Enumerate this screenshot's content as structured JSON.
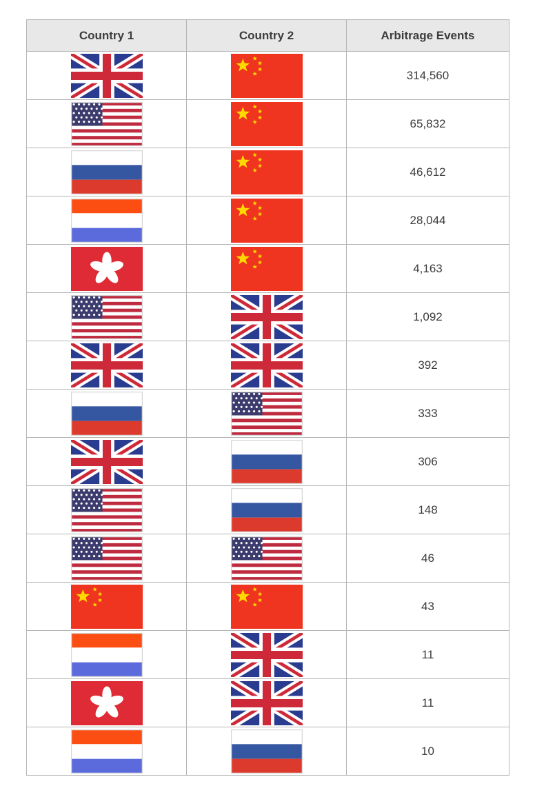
{
  "table": {
    "headers": [
      "Country 1",
      "Country 2",
      "Arbitrage Events"
    ],
    "rows": [
      {
        "country1": "united-kingdom",
        "country2": "china",
        "events": "314,560"
      },
      {
        "country1": "united-states",
        "country2": "china",
        "events": "65,832"
      },
      {
        "country1": "russia",
        "country2": "china",
        "events": "46,612"
      },
      {
        "country1": "netherlands",
        "country2": "china",
        "events": "28,044"
      },
      {
        "country1": "hong-kong",
        "country2": "china",
        "events": "4,163"
      },
      {
        "country1": "united-states",
        "country2": "united-kingdom",
        "events": "1,092"
      },
      {
        "country1": "united-kingdom",
        "country2": "united-kingdom",
        "events": "392"
      },
      {
        "country1": "russia",
        "country2": "united-states",
        "events": "333"
      },
      {
        "country1": "united-kingdom",
        "country2": "russia",
        "events": "306"
      },
      {
        "country1": "united-states",
        "country2": "russia",
        "events": "148"
      },
      {
        "country1": "united-states",
        "country2": "united-states",
        "events": "46"
      },
      {
        "country1": "china",
        "country2": "china",
        "events": "43"
      },
      {
        "country1": "netherlands",
        "country2": "united-kingdom",
        "events": "11"
      },
      {
        "country1": "hong-kong",
        "country2": "united-kingdom",
        "events": "11"
      },
      {
        "country1": "netherlands",
        "country2": "russia",
        "events": "10"
      }
    ]
  },
  "flags": {
    "united-kingdom": {
      "label": "United Kingdom",
      "colors": {
        "field": "#2A3C90",
        "white": "#FFFFFF",
        "red": "#CE2939"
      }
    },
    "united-states": {
      "label": "United States",
      "colors": {
        "white": "#FFFFFF",
        "red": "#BE2A3E",
        "blue": "#3C3B6E",
        "border": "#D8D8D8"
      }
    },
    "russia": {
      "label": "Russia",
      "colors": {
        "top": "#FFFFFF",
        "middle": "#3557A2",
        "bottom": "#DB3A2C",
        "border": "#D8D8D8"
      }
    },
    "netherlands": {
      "label": "Netherlands",
      "colors": {
        "top": "#FC4E12",
        "middle": "#FFFFFF",
        "bottom": "#5B6BDC",
        "border": "#D8D8D8"
      }
    },
    "china": {
      "label": "China",
      "colors": {
        "field": "#EF3420",
        "star": "#FFD900"
      }
    },
    "hong-kong": {
      "label": "Hong Kong",
      "colors": {
        "field": "#DE2B35",
        "flower": "#FFFFFF"
      }
    }
  },
  "chart_data": {
    "type": "table",
    "columns": [
      "Country 1",
      "Country 2",
      "Arbitrage Events"
    ],
    "rows": [
      [
        "United Kingdom",
        "China",
        314560
      ],
      [
        "United States",
        "China",
        65832
      ],
      [
        "Russia",
        "China",
        46612
      ],
      [
        "Netherlands",
        "China",
        28044
      ],
      [
        "Hong Kong",
        "China",
        4163
      ],
      [
        "United States",
        "United Kingdom",
        1092
      ],
      [
        "United Kingdom",
        "United Kingdom",
        392
      ],
      [
        "Russia",
        "United States",
        333
      ],
      [
        "United Kingdom",
        "Russia",
        306
      ],
      [
        "United States",
        "Russia",
        148
      ],
      [
        "United States",
        "United States",
        46
      ],
      [
        "China",
        "China",
        43
      ],
      [
        "Netherlands",
        "United Kingdom",
        11
      ],
      [
        "Hong Kong",
        "United Kingdom",
        11
      ],
      [
        "Netherlands",
        "Russia",
        10
      ]
    ]
  }
}
